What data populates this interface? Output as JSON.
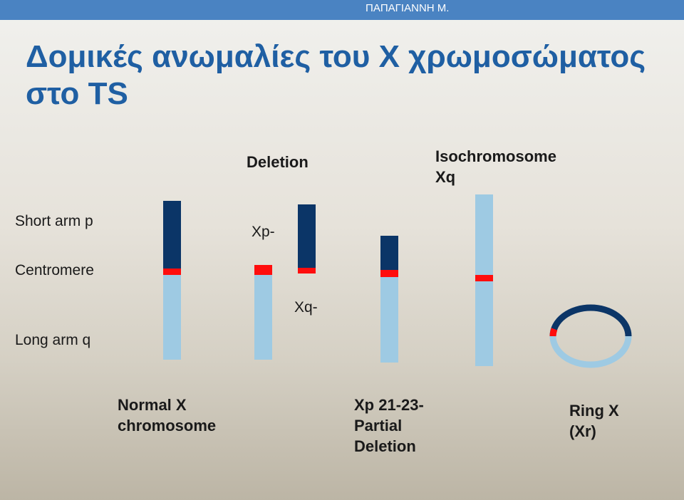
{
  "header": {
    "author": "ΠΑΠΑΓΙΑΝΝΗ Μ."
  },
  "title_line1": "Δομικές ανωμαλίες του Χ χρωμοσώματος",
  "title_line2": "στο TS",
  "labels": {
    "short_arm": "Short arm p",
    "centromere": "Centromere",
    "long_arm": "Long arm q",
    "deletion": "Deletion",
    "isochromosome_line1": "Isochromosome",
    "isochromosome_line2": "Xq",
    "xp_minus": "Xp-",
    "xq_minus": "Xq-",
    "normal_line1": "Normal X",
    "normal_line2": "chromosome",
    "partial_line1": "Xp 21-23-",
    "partial_line2": "Partial",
    "partial_line3": "Deletion",
    "ring_line1": "Ring X",
    "ring_line2": "(Xr)"
  },
  "colors": {
    "short_arm": "#0b3567",
    "centromere": "#ff0d0d",
    "long_arm": "#9ecae3",
    "title": "#1f5fa3",
    "header_bar": "#4a83c2"
  }
}
